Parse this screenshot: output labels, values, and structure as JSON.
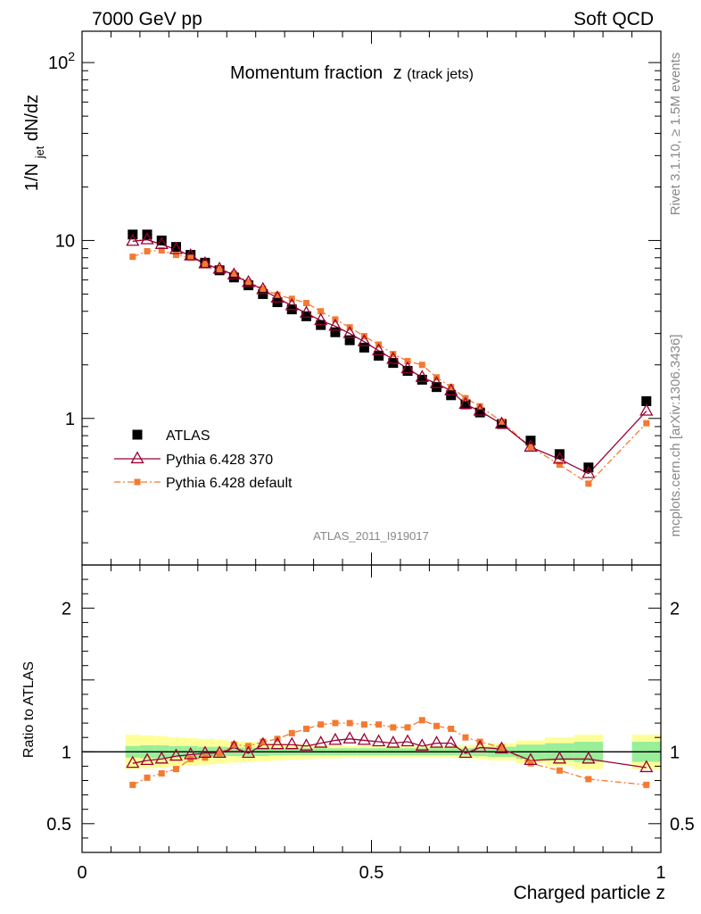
{
  "header": {
    "left": "7000 GeV pp",
    "right": "Soft QCD"
  },
  "side_text": {
    "rivet": "Rivet 3.1.10, ≥ 1.5M events",
    "mcplots": "mcplots.cern.ch [arXiv:1306.3436]"
  },
  "analysis_id": "ATLAS_2011_I919017",
  "chart_data": [
    {
      "type": "scatter",
      "panel": "main",
      "title": "Momentum fraction",
      "title_var": "z",
      "title_sub": "(track jets)",
      "ylabel": {
        "main": "1/N",
        "sub": "jet",
        "rest": " dN/dz"
      },
      "xlabel": "Charged particle z",
      "xlim": [
        0,
        1
      ],
      "ylim_log": [
        0.15,
        150
      ],
      "yscale": "log",
      "y_ticks": [
        {
          "v": 1,
          "label": "1",
          "sup": ""
        },
        {
          "v": 10,
          "label": "10",
          "sup": ""
        },
        {
          "v": 100,
          "label": "10",
          "sup": "2"
        }
      ],
      "legend": [
        {
          "name": "ATLAS",
          "color": "#000000"
        },
        {
          "name": "Pythia 6.428 370",
          "color": "#990033"
        },
        {
          "name": "Pythia 6.428 default",
          "color": "#f47a30"
        }
      ],
      "x": [
        0.0875,
        0.1125,
        0.1375,
        0.1625,
        0.1875,
        0.2125,
        0.2375,
        0.2625,
        0.2875,
        0.3125,
        0.3375,
        0.3625,
        0.3875,
        0.4125,
        0.4375,
        0.4625,
        0.4875,
        0.5125,
        0.5375,
        0.5625,
        0.5875,
        0.6125,
        0.6375,
        0.6625,
        0.6875,
        0.725,
        0.775,
        0.825,
        0.875,
        0.975
      ],
      "series": [
        {
          "name": "ATLAS",
          "color": "#000000",
          "values": [
            10.8,
            10.8,
            10.0,
            9.2,
            8.3,
            7.5,
            6.8,
            6.2,
            5.6,
            5.0,
            4.5,
            4.1,
            3.75,
            3.35,
            3.05,
            2.75,
            2.5,
            2.25,
            2.05,
            1.85,
            1.65,
            1.5,
            1.35,
            1.2,
            1.08,
            0.93,
            0.75,
            0.63,
            0.53,
            1.25
          ]
        },
        {
          "name": "Pythia 6.428 370",
          "color": "#990033",
          "values": [
            9.9,
            10.1,
            9.5,
            8.9,
            8.2,
            7.4,
            6.9,
            6.4,
            5.8,
            5.3,
            4.75,
            4.3,
            3.9,
            3.55,
            3.3,
            3.0,
            2.7,
            2.4,
            2.15,
            1.9,
            1.7,
            1.57,
            1.43,
            1.2,
            1.1,
            0.93,
            0.69,
            0.59,
            0.49,
            1.1
          ]
        },
        {
          "name": "Pythia 6.428 default",
          "color": "#f47a30",
          "values": [
            8.1,
            8.7,
            8.8,
            8.3,
            8.0,
            7.4,
            6.9,
            6.5,
            5.85,
            5.35,
            4.95,
            4.7,
            4.45,
            4.0,
            3.6,
            3.25,
            2.9,
            2.6,
            2.3,
            2.1,
            2.0,
            1.7,
            1.5,
            1.3,
            1.17,
            0.96,
            0.69,
            0.55,
            0.43,
            0.94
          ]
        }
      ]
    },
    {
      "type": "scatter",
      "panel": "ratio",
      "ylabel": "Ratio to ATLAS",
      "xlabel": "Charged particle z",
      "xlim": [
        0,
        1
      ],
      "ylim": [
        0.3,
        2.3
      ],
      "y_ticks": [
        0.5,
        1,
        2
      ],
      "y_tick_labels": [
        "0.5",
        "1",
        "2"
      ],
      "x_ticks": [
        0,
        0.5,
        1
      ],
      "x_tick_labels": [
        "0",
        "0.5",
        "1"
      ],
      "bins": [
        [
          0.075,
          0.1
        ],
        [
          0.1,
          0.125
        ],
        [
          0.125,
          0.15
        ],
        [
          0.15,
          0.175
        ],
        [
          0.175,
          0.2
        ],
        [
          0.2,
          0.225
        ],
        [
          0.225,
          0.25
        ],
        [
          0.25,
          0.275
        ],
        [
          0.275,
          0.3
        ],
        [
          0.3,
          0.325
        ],
        [
          0.325,
          0.35
        ],
        [
          0.35,
          0.375
        ],
        [
          0.375,
          0.4
        ],
        [
          0.4,
          0.425
        ],
        [
          0.425,
          0.45
        ],
        [
          0.45,
          0.475
        ],
        [
          0.475,
          0.5
        ],
        [
          0.5,
          0.525
        ],
        [
          0.525,
          0.55
        ],
        [
          0.55,
          0.575
        ],
        [
          0.575,
          0.6
        ],
        [
          0.6,
          0.625
        ],
        [
          0.625,
          0.65
        ],
        [
          0.65,
          0.675
        ],
        [
          0.675,
          0.7
        ],
        [
          0.7,
          0.75
        ],
        [
          0.75,
          0.8
        ],
        [
          0.8,
          0.85
        ],
        [
          0.85,
          0.9
        ],
        [
          0.95,
          1.0
        ]
      ],
      "band_stat": [
        0.04,
        0.045,
        0.045,
        0.04,
        0.04,
        0.035,
        0.035,
        0.03,
        0.03,
        0.03,
        0.025,
        0.025,
        0.025,
        0.025,
        0.025,
        0.025,
        0.025,
        0.025,
        0.025,
        0.025,
        0.025,
        0.025,
        0.025,
        0.025,
        0.03,
        0.035,
        0.05,
        0.06,
        0.07,
        0.07
      ],
      "band_total": [
        0.12,
        0.115,
        0.11,
        0.1,
        0.095,
        0.09,
        0.085,
        0.075,
        0.07,
        0.065,
        0.06,
        0.055,
        0.05,
        0.045,
        0.045,
        0.04,
        0.04,
        0.04,
        0.04,
        0.04,
        0.04,
        0.04,
        0.04,
        0.045,
        0.05,
        0.06,
        0.08,
        0.1,
        0.12,
        0.12
      ],
      "series": [
        {
          "name": "Pythia 6.428 370",
          "color": "#990033",
          "values": [
            0.92,
            0.94,
            0.95,
            0.97,
            0.98,
            0.99,
            0.99,
            1.03,
            0.99,
            1.05,
            1.05,
            1.05,
            1.04,
            1.06,
            1.08,
            1.09,
            1.08,
            1.07,
            1.06,
            1.07,
            1.04,
            1.06,
            1.06,
            0.99,
            1.03,
            1.02,
            0.94,
            0.95,
            0.95,
            0.89
          ]
        },
        {
          "name": "Pythia 6.428 default",
          "color": "#f47a30",
          "values": [
            0.77,
            0.82,
            0.85,
            0.88,
            0.95,
            0.96,
            0.99,
            1.05,
            1.04,
            1.07,
            1.09,
            1.13,
            1.16,
            1.19,
            1.2,
            1.2,
            1.19,
            1.19,
            1.17,
            1.17,
            1.22,
            1.18,
            1.16,
            1.1,
            1.07,
            1.03,
            0.92,
            0.87,
            0.81,
            0.77
          ]
        }
      ]
    }
  ]
}
